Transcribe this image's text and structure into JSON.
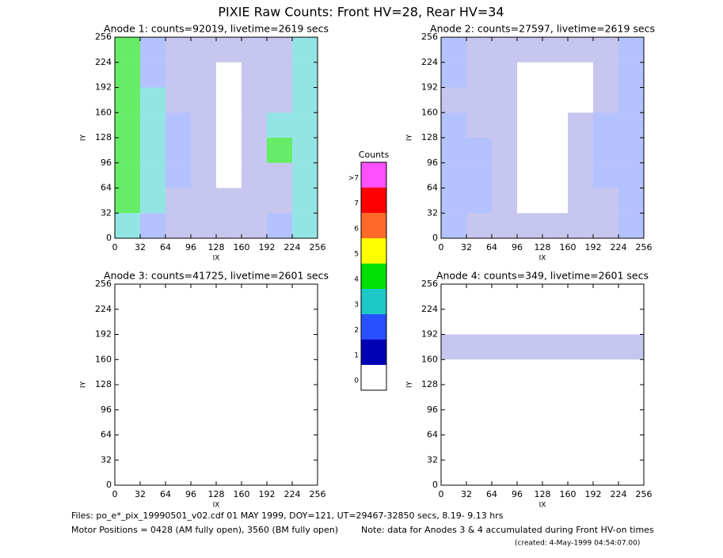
{
  "title": "PIXIE Raw Counts:  Front HV=28, Rear HV=34",
  "chart_data": [
    {
      "type": "heatmap",
      "title": "Anode 1: counts=92019, livetime=2619 secs",
      "xlabel": "IX",
      "ylabel": "IY",
      "xlim": [
        0,
        256
      ],
      "ylim": [
        0,
        256
      ],
      "xticks": [
        0,
        32,
        64,
        96,
        128,
        160,
        192,
        224,
        256
      ],
      "yticks": [
        0,
        32,
        64,
        96,
        128,
        160,
        192,
        224,
        256
      ],
      "z": [
        [
          3,
          2,
          1,
          1,
          1,
          1,
          2,
          3
        ],
        [
          4,
          3,
          1,
          1,
          1,
          1,
          1,
          3
        ],
        [
          4,
          3,
          2,
          1,
          0,
          1,
          1,
          3
        ],
        [
          4,
          3,
          2,
          1,
          0,
          1,
          4,
          3
        ],
        [
          4,
          3,
          2,
          1,
          0,
          1,
          3,
          3
        ],
        [
          4,
          3,
          1,
          1,
          0,
          1,
          1,
          3
        ],
        [
          4,
          2,
          1,
          1,
          0,
          1,
          1,
          3
        ],
        [
          4,
          2,
          1,
          1,
          1,
          1,
          1,
          3
        ]
      ]
    },
    {
      "type": "heatmap",
      "title": "Anode 2: counts=27597, livetime=2619 secs",
      "xlabel": "IX",
      "ylabel": "IY",
      "xlim": [
        0,
        256
      ],
      "ylim": [
        0,
        256
      ],
      "xticks": [
        0,
        32,
        64,
        96,
        128,
        160,
        192,
        224,
        256
      ],
      "yticks": [
        0,
        32,
        64,
        96,
        128,
        160,
        192,
        224,
        256
      ],
      "z": [
        [
          2,
          1,
          1,
          1,
          1,
          1,
          1,
          2
        ],
        [
          2,
          2,
          1,
          0,
          0,
          1,
          1,
          2
        ],
        [
          2,
          2,
          1,
          0,
          0,
          1,
          2,
          2
        ],
        [
          2,
          2,
          1,
          0,
          0,
          1,
          2,
          2
        ],
        [
          2,
          1,
          1,
          0,
          0,
          1,
          2,
          2
        ],
        [
          1,
          1,
          1,
          0,
          0,
          0,
          1,
          2
        ],
        [
          2,
          1,
          1,
          0,
          0,
          0,
          1,
          2
        ],
        [
          2,
          1,
          1,
          1,
          1,
          1,
          1,
          2
        ]
      ]
    },
    {
      "type": "heatmap",
      "title": "Anode 3: counts=41725, livetime=2601 secs",
      "xlabel": "IX",
      "ylabel": "IY",
      "xlim": [
        0,
        256
      ],
      "ylim": [
        0,
        256
      ],
      "xticks": [
        0,
        32,
        64,
        96,
        128,
        160,
        192,
        224,
        256
      ],
      "yticks": [
        0,
        32,
        64,
        96,
        128,
        160,
        192,
        224,
        256
      ],
      "z": [
        [
          0,
          0,
          0,
          0,
          0,
          0,
          0,
          0
        ],
        [
          0,
          0,
          0,
          0,
          0,
          0,
          0,
          0
        ],
        [
          0,
          0,
          0,
          0,
          0,
          0,
          0,
          0
        ],
        [
          0,
          0,
          0,
          0,
          0,
          0,
          0,
          0
        ],
        [
          0,
          0,
          0,
          0,
          0,
          0,
          0,
          0
        ],
        [
          0,
          0,
          0,
          0,
          0,
          0,
          0,
          0
        ],
        [
          0,
          0,
          0,
          0,
          0,
          0,
          0,
          0
        ],
        [
          0,
          0,
          0,
          0,
          0,
          0,
          0,
          0
        ]
      ]
    },
    {
      "type": "heatmap",
      "title": "Anode 4: counts=349, livetime=2601 secs",
      "xlabel": "IX",
      "ylabel": "IY",
      "xlim": [
        0,
        256
      ],
      "ylim": [
        0,
        256
      ],
      "xticks": [
        0,
        32,
        64,
        96,
        128,
        160,
        192,
        224,
        256
      ],
      "yticks": [
        0,
        32,
        64,
        96,
        128,
        160,
        192,
        224,
        256
      ],
      "z": [
        [
          0,
          0,
          0,
          0,
          0,
          0,
          0,
          0
        ],
        [
          0,
          0,
          0,
          0,
          0,
          0,
          0,
          0
        ],
        [
          0,
          0,
          0,
          0,
          0,
          0,
          0,
          0
        ],
        [
          0,
          0,
          0,
          0,
          0,
          0,
          0,
          0
        ],
        [
          0,
          0,
          0,
          0,
          0,
          0,
          0,
          0
        ],
        [
          1,
          1,
          1,
          1,
          1,
          1,
          1,
          1
        ],
        [
          0,
          0,
          0,
          0,
          0,
          0,
          0,
          0
        ],
        [
          0,
          0,
          0,
          0,
          0,
          0,
          0,
          0
        ]
      ]
    }
  ],
  "colorbar": {
    "title": "Counts",
    "levels": [
      {
        "label": "0",
        "color": "#ffffff"
      },
      {
        "label": "1",
        "color": "#0000b4"
      },
      {
        "label": "2",
        "color": "#2850ff"
      },
      {
        "label": "3",
        "color": "#1cc8c8"
      },
      {
        "label": "4",
        "color": "#00e000"
      },
      {
        "label": "5",
        "color": "#ffff00"
      },
      {
        "label": "6",
        "color": "#ff6a28"
      },
      {
        "label": "7",
        "color": "#ff0000"
      },
      {
        "label": ">7",
        "color": "#ff50ff"
      }
    ]
  },
  "footer": {
    "files": "Files: po_e*_pix_19990501_v02.cdf    01 MAY 1999, DOY=121, UT=29467-32850 secs,  8.19- 9.13 hrs",
    "motor": "Motor Positions = 0428 (AM fully open), 3560 (BM fully open)",
    "note": "Note: data for Anodes 3 & 4 accumulated during Front HV-on times",
    "created": "(created:  4-May-1999 04:54:07.00)"
  }
}
